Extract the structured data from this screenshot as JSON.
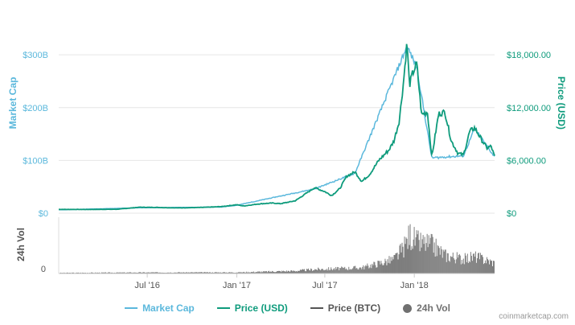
{
  "colors": {
    "market_cap": "#5bb8dc",
    "price_usd": "#0e9b7c",
    "price_btc": "#555555",
    "volume": "#707070",
    "grid": "#e6e6e6",
    "axis_text_left": "#5bb8dc",
    "axis_text_right": "#0e9b7c"
  },
  "chart_data": {
    "type": "line",
    "x_axis": {
      "range": [
        "2016-01-01",
        "2018-06-15"
      ],
      "ticks": [
        {
          "date": "2016-07-01",
          "label": "Jul '16"
        },
        {
          "date": "2017-01-01",
          "label": "Jan '17"
        },
        {
          "date": "2017-07-01",
          "label": "Jul '17"
        },
        {
          "date": "2018-01-01",
          "label": "Jan '18"
        }
      ]
    },
    "y_left": {
      "title": "Market Cap",
      "range": [
        0,
        320
      ],
      "ticks": [
        {
          "value": 0,
          "label": "$0"
        },
        {
          "value": 100,
          "label": "$100B"
        },
        {
          "value": 200,
          "label": "$200B"
        },
        {
          "value": 300,
          "label": "$300B"
        }
      ]
    },
    "y_right": {
      "title": "Price (USD)",
      "ticks": [
        {
          "value": 0,
          "label": "$0"
        },
        {
          "value": 6000,
          "label": "$6,000.00"
        },
        {
          "value": 12000,
          "label": "$12,000.00"
        },
        {
          "value": 18000,
          "label": "$18,000.00"
        }
      ]
    },
    "volume_axis": {
      "title": "24h Vol",
      "ticks": [
        {
          "value": 0,
          "label": "0"
        }
      ]
    },
    "series": [
      {
        "name": "Price (USD)",
        "points": [
          [
            "2016-01-01",
            430
          ],
          [
            "2016-03-01",
            420
          ],
          [
            "2016-05-01",
            450
          ],
          [
            "2016-06-15",
            680
          ],
          [
            "2016-07-15",
            660
          ],
          [
            "2016-09-01",
            600
          ],
          [
            "2016-10-15",
            640
          ],
          [
            "2016-12-01",
            750
          ],
          [
            "2017-01-01",
            960
          ],
          [
            "2017-01-15",
            820
          ],
          [
            "2017-02-15",
            1050
          ],
          [
            "2017-03-15",
            1150
          ],
          [
            "2017-04-01",
            1080
          ],
          [
            "2017-05-01",
            1400
          ],
          [
            "2017-05-25",
            2300
          ],
          [
            "2017-06-10",
            2900
          ],
          [
            "2017-07-01",
            2450
          ],
          [
            "2017-07-15",
            2000
          ],
          [
            "2017-08-01",
            2800
          ],
          [
            "2017-08-15",
            4200
          ],
          [
            "2017-09-01",
            4700
          ],
          [
            "2017-09-15",
            3600
          ],
          [
            "2017-10-01",
            4400
          ],
          [
            "2017-10-20",
            6000
          ],
          [
            "2017-11-10",
            7200
          ],
          [
            "2017-11-20",
            8200
          ],
          [
            "2017-12-01",
            10500
          ],
          [
            "2017-12-10",
            15000
          ],
          [
            "2017-12-17",
            19500
          ],
          [
            "2017-12-22",
            14500
          ],
          [
            "2017-12-28",
            15800
          ],
          [
            "2018-01-06",
            17000
          ],
          [
            "2018-01-16",
            11200
          ],
          [
            "2018-01-28",
            11500
          ],
          [
            "2018-02-06",
            6400
          ],
          [
            "2018-02-20",
            11300
          ],
          [
            "2018-03-05",
            11500
          ],
          [
            "2018-03-18",
            8200
          ],
          [
            "2018-04-01",
            6800
          ],
          [
            "2018-04-12",
            6600
          ],
          [
            "2018-04-25",
            9300
          ],
          [
            "2018-05-05",
            9700
          ],
          [
            "2018-05-20",
            8300
          ],
          [
            "2018-05-30",
            7400
          ],
          [
            "2018-06-08",
            7600
          ],
          [
            "2018-06-15",
            6400
          ]
        ]
      },
      {
        "name": "Market Cap",
        "points": [
          [
            "2016-01-01",
            6.5
          ],
          [
            "2016-06-15",
            10.5
          ],
          [
            "2016-12-01",
            12
          ],
          [
            "2017-01-01",
            15.5
          ],
          [
            "2017-06-10",
            47.5
          ],
          [
            "2017-09-01",
            78
          ],
          [
            "2017-12-17",
            326
          ],
          [
            "2018-01-06",
            285
          ],
          [
            "2018-02-06",
            108
          ],
          [
            "2018-04-12",
            112
          ],
          [
            "2018-05-05",
            165
          ],
          [
            "2018-06-15",
            110
          ]
        ]
      },
      {
        "name": "Price (BTC)",
        "points": []
      },
      {
        "name": "24h Vol",
        "points": [
          [
            "2016-01-01",
            0.25
          ],
          [
            "2016-06-15",
            0.4
          ],
          [
            "2017-01-01",
            0.45
          ],
          [
            "2017-05-01",
            1.0
          ],
          [
            "2017-06-10",
            1.6
          ],
          [
            "2017-08-15",
            2.0
          ],
          [
            "2017-09-15",
            2.3
          ],
          [
            "2017-11-01",
            4.5
          ],
          [
            "2017-11-20",
            5.5
          ],
          [
            "2017-12-10",
            10
          ],
          [
            "2017-12-22",
            15
          ],
          [
            "2018-01-06",
            12
          ],
          [
            "2018-02-06",
            11
          ],
          [
            "2018-03-05",
            7
          ],
          [
            "2018-04-12",
            5.5
          ],
          [
            "2018-05-05",
            6.5
          ],
          [
            "2018-06-15",
            4
          ]
        ]
      }
    ],
    "legend": {
      "placement": "bottom",
      "items": [
        {
          "label": "Market Cap",
          "color": "#5bb8dc",
          "marker": "line"
        },
        {
          "label": "Price (USD)",
          "color": "#0e9b7c",
          "marker": "line"
        },
        {
          "label": "Price (BTC)",
          "color": "#555555",
          "marker": "line"
        },
        {
          "label": "24h Vol",
          "color": "#707070",
          "marker": "dot"
        }
      ]
    }
  },
  "credit": "coinmarketcap.com"
}
